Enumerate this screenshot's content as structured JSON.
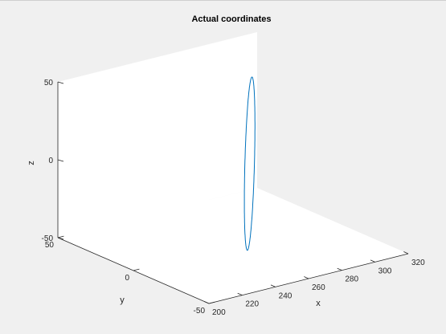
{
  "chart_data": {
    "type": "line",
    "projection": "3d",
    "title": "Actual coordinates",
    "xlabel": "x",
    "ylabel": "y",
    "zlabel": "z",
    "xlim": [
      200,
      320
    ],
    "ylim": [
      -50,
      50
    ],
    "zlim": [
      -50,
      50
    ],
    "xticks": [
      200,
      220,
      240,
      260,
      280,
      300,
      320
    ],
    "yticks": [
      -50,
      0,
      50
    ],
    "zticks": [
      -50,
      0,
      50
    ],
    "grid": false,
    "box": "back-planes",
    "series": [
      {
        "color": "#0072bd",
        "shape": "circle",
        "center": {
          "x": 270,
          "y": 0,
          "z": 0
        },
        "radius": 50,
        "in_plane": "y-z rotated about z",
        "plane_axis_u": [
          0.707,
          0.707,
          0
        ],
        "plane_axis_v": [
          0,
          0,
          1
        ]
      }
    ]
  },
  "colors": {
    "window_background": "#f0f0f0",
    "axes_background": "#ffffff",
    "line": "#0072bd",
    "axis": "#262626"
  }
}
